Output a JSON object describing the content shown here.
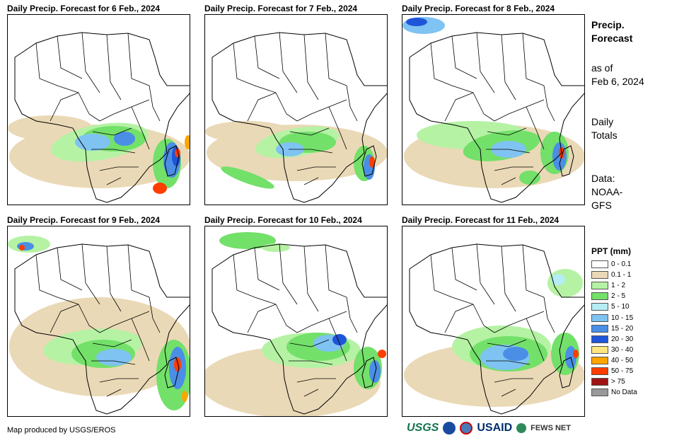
{
  "panels": [
    {
      "title": "Daily Precip. Forecast for 6 Feb., 2024"
    },
    {
      "title": "Daily Precip. Forecast for 7 Feb., 2024"
    },
    {
      "title": "Daily Precip. Forecast for 8 Feb., 2024"
    },
    {
      "title": "Daily Precip. Forecast for 9 Feb., 2024"
    },
    {
      "title": "Daily Precip. Forecast for 10 Feb., 2024"
    },
    {
      "title": "Daily Precip. Forecast for 11 Feb., 2024"
    }
  ],
  "sidebar": {
    "title_line1": "Precip.",
    "title_line2": "Forecast",
    "as_of_line1": "as of",
    "as_of_line2": "Feb 6, 2024",
    "totals_line1": "Daily",
    "totals_line2": "Totals",
    "data_line1": "Data:",
    "data_line2": "NOAA-",
    "data_line3": "GFS"
  },
  "legend": {
    "title": "PPT (mm)",
    "items": [
      {
        "label": "0 - 0.1",
        "color": "#ffffff"
      },
      {
        "label": "0.1 - 1",
        "color": "#ead9b6"
      },
      {
        "label": "1 - 2",
        "color": "#b5f2a4"
      },
      {
        "label": "2 - 5",
        "color": "#73e06a"
      },
      {
        "label": "5 - 10",
        "color": "#b6ecf6"
      },
      {
        "label": "10 - 15",
        "color": "#7fc3f2"
      },
      {
        "label": "15 - 20",
        "color": "#4a8ee6"
      },
      {
        "label": "20 - 30",
        "color": "#1f55d8"
      },
      {
        "label": "30 - 40",
        "color": "#ffe680"
      },
      {
        "label": "40 - 50",
        "color": "#ffa500"
      },
      {
        "label": "50 - 75",
        "color": "#ff3d00"
      },
      {
        "label": "> 75",
        "color": "#a01414"
      },
      {
        "label": "No Data",
        "color": "#999999"
      }
    ]
  },
  "footer": {
    "credit": "Map produced by USGS/EROS",
    "logo_usgs": "USGS",
    "logo_usaid": "USAID",
    "logo_fews": "FEWS NET"
  }
}
